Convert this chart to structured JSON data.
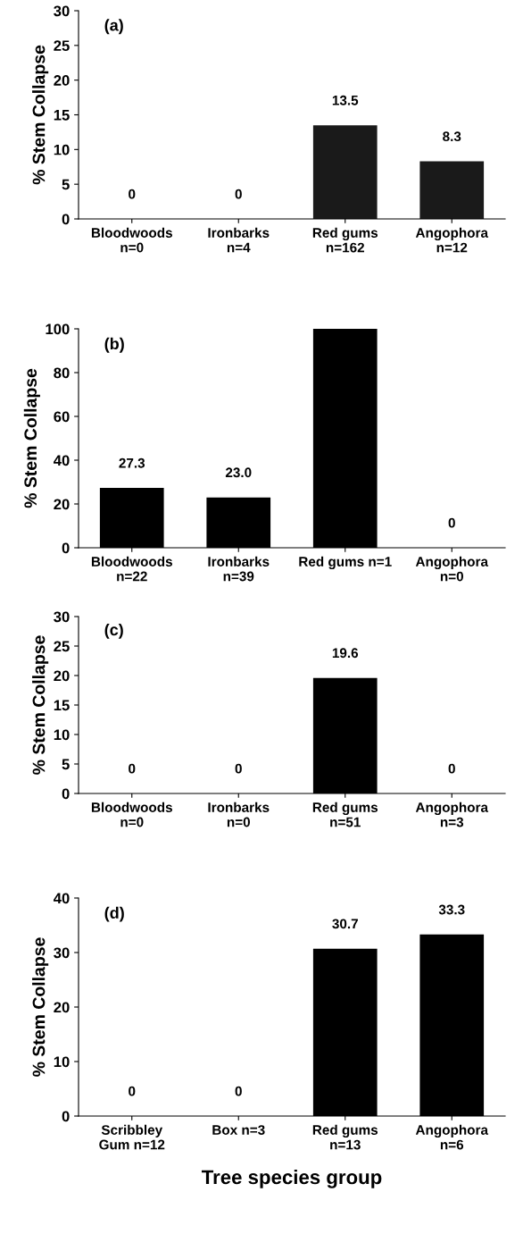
{
  "chart_data": [
    {
      "type": "bar",
      "categories": [
        "Bloodwoods\nn=0",
        "Ironbarks\nn=4",
        "Red gums\nn=162",
        "Angophora\nn=12"
      ],
      "values": [
        0,
        0,
        13.5,
        8.3
      ],
      "value_labels": [
        "0",
        "0",
        "13.5",
        "8.3"
      ],
      "color": "#1a1a1a",
      "ylabel": "% Stem Collapse",
      "ylim": [
        0,
        30
      ],
      "yticks": [
        0,
        5,
        10,
        15,
        20,
        25,
        30
      ],
      "annotations": [
        "(a)"
      ],
      "grid": false,
      "legend": false
    },
    {
      "type": "bar",
      "categories": [
        "Bloodwoods\nn=22",
        "Ironbarks\nn=39",
        "Red gums n=1",
        "Angophora\nn=0"
      ],
      "values": [
        27.3,
        23.0,
        100,
        0
      ],
      "value_labels": [
        "27.3",
        "23.0",
        null,
        "0"
      ],
      "color": "#000000",
      "ylabel": "% Stem Collapse",
      "ylim": [
        0,
        100
      ],
      "yticks": [
        0,
        20,
        40,
        60,
        80,
        100
      ],
      "annotations": [
        "(b)"
      ],
      "grid": false,
      "legend": false
    },
    {
      "type": "bar",
      "categories": [
        "Bloodwoods\nn=0",
        "Ironbarks\nn=0",
        "Red gums\nn=51",
        "Angophora\nn=3"
      ],
      "values": [
        0,
        0,
        19.6,
        0
      ],
      "value_labels": [
        "0",
        "0",
        "19.6",
        "0"
      ],
      "color": "#000000",
      "ylabel": "% Stem Collapse",
      "ylim": [
        0,
        30
      ],
      "yticks": [
        0,
        5,
        10,
        15,
        20,
        25,
        30
      ],
      "annotations": [
        "(c)"
      ],
      "grid": false,
      "legend": false
    },
    {
      "type": "bar",
      "categories": [
        "Scribbley\nGum n=12",
        "Box n=3",
        "Red gums\nn=13",
        "Angophora\nn=6"
      ],
      "values": [
        0,
        0,
        30.7,
        33.3
      ],
      "value_labels": [
        "0",
        "0",
        "30.7",
        "33.3"
      ],
      "color": "#000000",
      "ylabel": "% Stem Collapse",
      "xlabel": "Tree species group",
      "ylim": [
        0,
        40
      ],
      "yticks": [
        0,
        10,
        20,
        30,
        40
      ],
      "annotations": [
        "(d)"
      ],
      "grid": false,
      "legend": false
    }
  ]
}
